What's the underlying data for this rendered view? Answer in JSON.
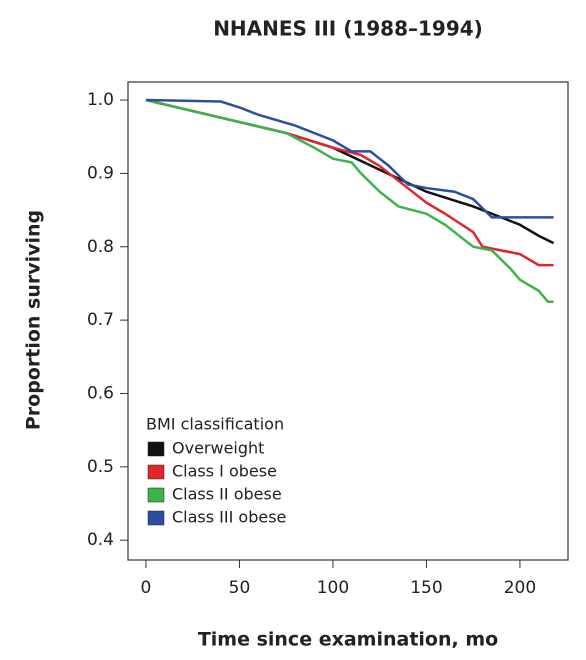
{
  "chart_data": {
    "type": "line",
    "title": "NHANES III (1988–1994)",
    "x_label": "Time since examination, mo",
    "y_label": "Proportion surviving",
    "legend_title": "BMI classification",
    "legend": "bottom-left",
    "xlim": [
      -9.6,
      225.7
    ],
    "ylim": [
      0.373,
      1.0246
    ],
    "xticks": [
      0,
      50,
      100,
      150,
      200
    ],
    "yticks": [
      0.4,
      0.5,
      0.6,
      0.7,
      0.8,
      0.9,
      {
        "value": 1,
        "label": "1.0"
      }
    ],
    "series": [
      {
        "name": "Overweight",
        "color": "#111111",
        "x": [
          0,
          25,
          50,
          75,
          100,
          125,
          150,
          175,
          200,
          210,
          218
        ],
        "values": [
          1.0,
          0.985,
          0.97,
          0.955,
          0.935,
          0.905,
          0.875,
          0.855,
          0.83,
          0.815,
          0.805
        ]
      },
      {
        "name": "Class I obese",
        "color": "#e0252b",
        "x": [
          0,
          50,
          75,
          100,
          115,
          125,
          140,
          150,
          160,
          175,
          180,
          200,
          210,
          218
        ],
        "values": [
          1.0,
          0.97,
          0.955,
          0.935,
          0.925,
          0.91,
          0.88,
          0.86,
          0.845,
          0.82,
          0.8,
          0.79,
          0.775,
          0.775
        ]
      },
      {
        "name": "Class II obese",
        "color": "#3cb44a",
        "x": [
          0,
          50,
          75,
          90,
          100,
          110,
          115,
          125,
          135,
          150,
          160,
          170,
          175,
          185,
          195,
          200,
          210,
          215,
          218
        ],
        "values": [
          1.0,
          0.97,
          0.955,
          0.935,
          0.92,
          0.915,
          0.9,
          0.875,
          0.855,
          0.845,
          0.83,
          0.81,
          0.8,
          0.795,
          0.77,
          0.755,
          0.74,
          0.725,
          0.725
        ]
      },
      {
        "name": "Class III obese",
        "color": "#2c4da0",
        "x": [
          0,
          40,
          50,
          60,
          80,
          100,
          110,
          120,
          130,
          140,
          150,
          165,
          175,
          185,
          200,
          218
        ],
        "values": [
          1.0,
          0.998,
          0.99,
          0.98,
          0.965,
          0.945,
          0.93,
          0.93,
          0.91,
          0.885,
          0.88,
          0.875,
          0.865,
          0.84,
          0.84,
          0.84
        ]
      }
    ]
  }
}
